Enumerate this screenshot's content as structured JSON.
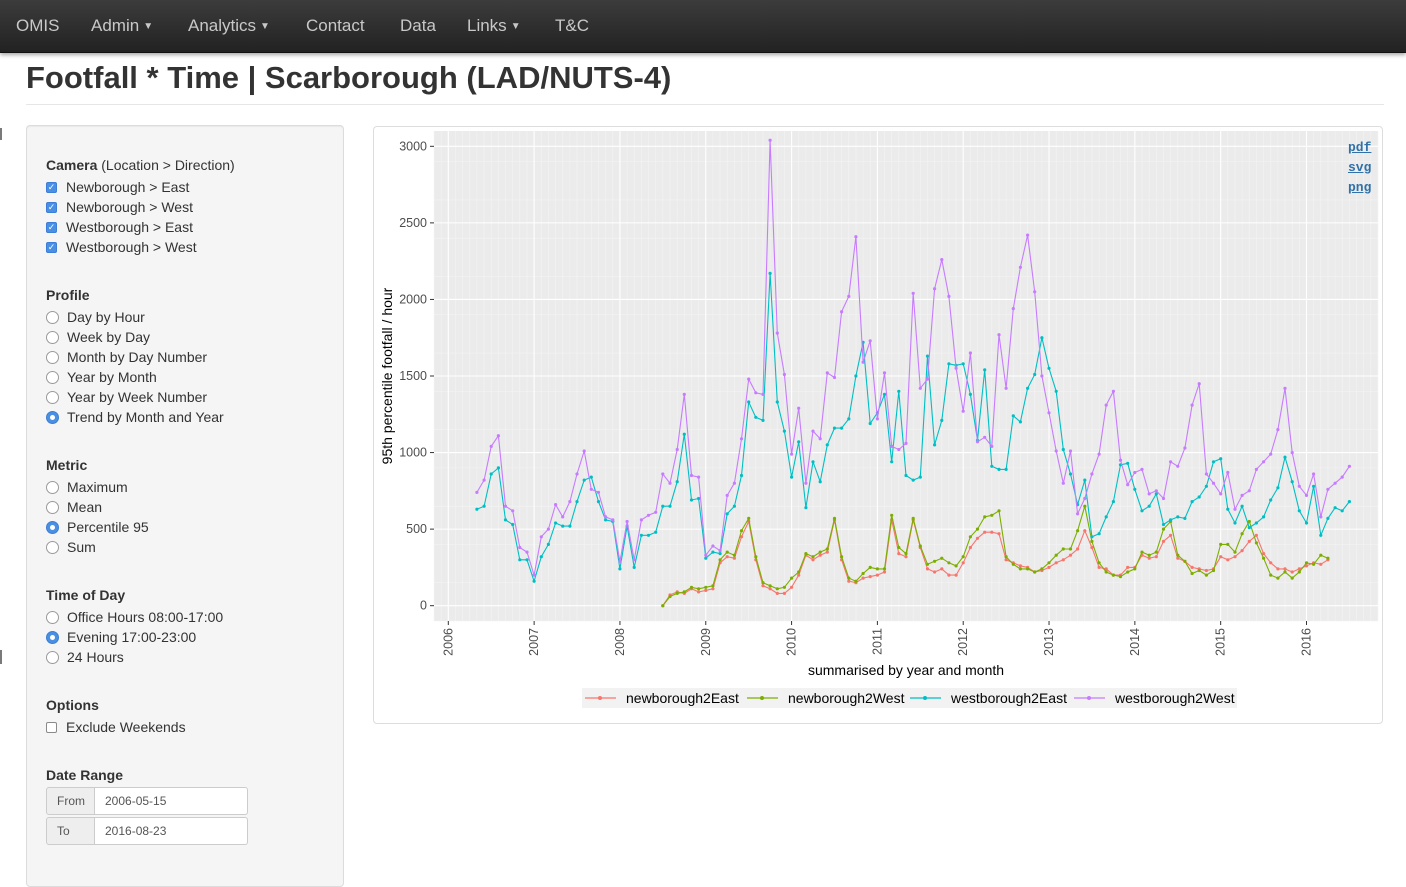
{
  "navbar": {
    "brand": "OMIS",
    "items": [
      {
        "label": "Admin",
        "dropdown": true
      },
      {
        "label": "Analytics",
        "dropdown": true
      },
      {
        "label": "Contact",
        "dropdown": false
      },
      {
        "label": "Data",
        "dropdown": false
      },
      {
        "label": "Links",
        "dropdown": true
      },
      {
        "label": "T&C",
        "dropdown": false
      }
    ]
  },
  "page": {
    "title": "Footfall * Time | Scarborough (LAD/NUTS-4)"
  },
  "sidebar": {
    "camera": {
      "label": "Camera",
      "sublabel": "(Location > Direction)",
      "options": [
        {
          "label": "Newborough > East",
          "checked": true
        },
        {
          "label": "Newborough > West",
          "checked": true
        },
        {
          "label": "Westborough > East",
          "checked": true
        },
        {
          "label": "Westborough > West",
          "checked": true
        }
      ]
    },
    "profile": {
      "label": "Profile",
      "options": [
        "Day by Hour",
        "Week by Day",
        "Month by Day Number",
        "Year by Month",
        "Year by Week Number",
        "Trend by Month and Year"
      ],
      "selected": "Trend by Month and Year"
    },
    "metric": {
      "label": "Metric",
      "options": [
        "Maximum",
        "Mean",
        "Percentile 95",
        "Sum"
      ],
      "selected": "Percentile 95"
    },
    "time_of_day": {
      "label": "Time of Day",
      "options": [
        "Office Hours 08:00-17:00",
        "Evening 17:00-23:00",
        "24 Hours"
      ],
      "selected": "Evening 17:00-23:00"
    },
    "options": {
      "label": "Options",
      "items": [
        {
          "label": "Exclude Weekends",
          "checked": false
        }
      ]
    },
    "date_range": {
      "label": "Date Range",
      "from_label": "From",
      "from_value": "2006-05-15",
      "to_label": "To",
      "to_value": "2016-08-23"
    }
  },
  "downloads": [
    "pdf",
    "svg",
    "png"
  ],
  "colors": {
    "newborough2East": "#F8766D",
    "newborough2West": "#7CAE00",
    "westborough2East": "#00BFC4",
    "westborough2West": "#C77CFF",
    "panel_bg": "#EBEBEB",
    "accent": "#4a90e2"
  },
  "chart_data": {
    "type": "line",
    "xlabel": "summarised by year and month",
    "ylabel": "95th percentile footfall / hour",
    "x_ticks": [
      "2006",
      "2007",
      "2008",
      "2009",
      "2010",
      "2011",
      "2012",
      "2013",
      "2014",
      "2015",
      "2016"
    ],
    "y_ticks": [
      0,
      500,
      1000,
      1500,
      2000,
      2500,
      3000
    ],
    "xlim": [
      "2005-11",
      "2016-11"
    ],
    "ylim": [
      -100,
      3100
    ],
    "grid": true,
    "legend_position": "bottom",
    "series": [
      {
        "name": "newborough2East",
        "start": "2008-07",
        "values": [
          0,
          70,
          90,
          80,
          110,
          90,
          100,
          110,
          280,
          320,
          310,
          450,
          550,
          300,
          130,
          110,
          80,
          80,
          120,
          200,
          330,
          300,
          330,
          350,
          560,
          300,
          160,
          150,
          180,
          190,
          200,
          220,
          560,
          340,
          320,
          560,
          380,
          240,
          220,
          240,
          200,
          200,
          280,
          380,
          440,
          480,
          480,
          470,
          300,
          280,
          260,
          250,
          220,
          230,
          250,
          280,
          300,
          330,
          370,
          490,
          380,
          250,
          240,
          200,
          200,
          250,
          250,
          330,
          310,
          320,
          420,
          460,
          310,
          290,
          250,
          240,
          230,
          240,
          320,
          300,
          320,
          360,
          420,
          460,
          340,
          280,
          240,
          240,
          220,
          240,
          260,
          280,
          270,
          300
        ]
      },
      {
        "name": "newborough2West",
        "start": "2008-07",
        "values": [
          0,
          60,
          80,
          90,
          120,
          110,
          120,
          130,
          300,
          350,
          330,
          490,
          570,
          320,
          150,
          130,
          110,
          120,
          180,
          220,
          340,
          320,
          350,
          370,
          570,
          320,
          180,
          160,
          210,
          250,
          240,
          240,
          590,
          380,
          340,
          570,
          390,
          270,
          290,
          310,
          280,
          260,
          320,
          450,
          500,
          580,
          590,
          620,
          320,
          270,
          240,
          240,
          220,
          240,
          280,
          330,
          370,
          370,
          490,
          650,
          420,
          280,
          220,
          200,
          190,
          220,
          240,
          350,
          330,
          350,
          500,
          550,
          330,
          290,
          210,
          230,
          200,
          230,
          400,
          400,
          350,
          470,
          550,
          410,
          310,
          200,
          180,
          220,
          180,
          220,
          280,
          270,
          330,
          310
        ]
      },
      {
        "name": "westborough2East",
        "start": "2006-05",
        "values": [
          630,
          650,
          860,
          900,
          560,
          530,
          300,
          300,
          160,
          320,
          400,
          540,
          520,
          520,
          680,
          820,
          840,
          680,
          560,
          550,
          240,
          520,
          250,
          460,
          460,
          480,
          650,
          650,
          810,
          1120,
          690,
          700,
          310,
          350,
          340,
          600,
          650,
          850,
          1330,
          1230,
          1210,
          2170,
          1330,
          1140,
          840,
          1070,
          640,
          940,
          810,
          1050,
          1160,
          1160,
          1220,
          1500,
          1720,
          1190,
          1260,
          1380,
          940,
          1400,
          850,
          820,
          840,
          1630,
          1050,
          1210,
          1580,
          1570,
          1580,
          1380,
          1080,
          1540,
          910,
          890,
          890,
          1240,
          1200,
          1420,
          1510,
          1750,
          1550,
          1400,
          1020,
          860,
          660,
          820,
          450,
          470,
          580,
          680,
          920,
          930,
          760,
          620,
          650,
          730,
          530,
          560,
          580,
          570,
          680,
          710,
          780,
          940,
          960,
          630,
          540,
          650,
          510,
          540,
          580,
          690,
          770,
          970,
          810,
          620,
          540,
          780,
          460,
          570,
          640,
          620,
          680
        ]
      },
      {
        "name": "westborough2West",
        "start": "2006-05",
        "values": [
          740,
          820,
          1040,
          1110,
          650,
          620,
          380,
          350,
          200,
          450,
          500,
          660,
          580,
          680,
          860,
          1010,
          760,
          740,
          580,
          560,
          290,
          550,
          300,
          560,
          590,
          610,
          860,
          800,
          1020,
          1380,
          850,
          840,
          330,
          390,
          360,
          720,
          800,
          1090,
          1480,
          1390,
          1380,
          3040,
          1780,
          1510,
          990,
          1290,
          800,
          1140,
          1090,
          1520,
          1490,
          1920,
          2020,
          2410,
          1590,
          1730,
          1220,
          1520,
          1040,
          1020,
          1060,
          2040,
          1420,
          1480,
          2070,
          2260,
          2020,
          1550,
          1270,
          1650,
          1070,
          1100,
          1040,
          1770,
          1420,
          1940,
          2210,
          2420,
          2050,
          1500,
          1260,
          1010,
          800,
          1010,
          600,
          700,
          860,
          990,
          1310,
          1400,
          950,
          790,
          870,
          890,
          730,
          750,
          700,
          940,
          910,
          1030,
          1310,
          1450,
          860,
          800,
          730,
          870,
          630,
          720,
          750,
          890,
          940,
          990,
          1150,
          1420,
          1000,
          780,
          720,
          860,
          580,
          760,
          800,
          840,
          910
        ]
      }
    ]
  }
}
